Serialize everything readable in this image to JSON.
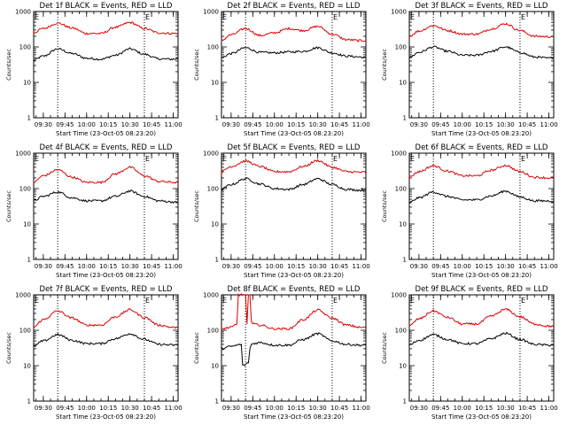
{
  "figure": {
    "background": "#ffffff",
    "events_color": "#000000",
    "lld_color": "#dd0000"
  },
  "chart_data": [
    {
      "type": "line",
      "title": "Det 1f BLACK = Events, RED = LLD",
      "xlabel": "Start Time (23-Oct-05 08:23:20)",
      "ylabel": "Counts/sec",
      "ylog": true,
      "ylim": [
        1,
        1000
      ],
      "ytick_labels": [
        "1",
        "10",
        "100",
        "1000"
      ],
      "x_tick_labels": [
        "09:30",
        "09:45",
        "10:00",
        "10:15",
        "10:30",
        "10:45",
        "11:00"
      ],
      "x_domain": [
        "09:23:20",
        "11:03:20"
      ],
      "markers": [
        {
          "label": "E",
          "time": "09:23:20"
        },
        {
          "label": "E",
          "time": "10:40:00"
        }
      ],
      "vlines": [
        "09:40:00",
        "10:40:00"
      ],
      "series": [
        {
          "name": "Events",
          "x": [
            "09:23",
            "09:30",
            "09:40",
            "09:50",
            "10:00",
            "10:10",
            "10:20",
            "10:30",
            "10:40",
            "10:50",
            "11:00",
            "11:03"
          ],
          "values": [
            42,
            55,
            88,
            65,
            48,
            45,
            58,
            88,
            62,
            46,
            45,
            46
          ]
        },
        {
          "name": "LLD",
          "x": [
            "09:23",
            "09:30",
            "09:40",
            "09:50",
            "10:00",
            "10:10",
            "10:20",
            "10:30",
            "10:40",
            "10:50",
            "11:00",
            "11:03"
          ],
          "values": [
            250,
            330,
            470,
            340,
            240,
            240,
            360,
            490,
            330,
            250,
            240,
            245
          ]
        }
      ]
    },
    {
      "type": "line",
      "title": "Det 2f BLACK = Events, RED = LLD",
      "xlabel": "Start Time (23-Oct-05 08:23:20)",
      "ylabel": "Counts/sec",
      "ylog": true,
      "ylim": [
        1,
        1000
      ],
      "ytick_labels": [
        "1",
        "10",
        "100",
        "1000"
      ],
      "x_tick_labels": [
        "09:30",
        "09:45",
        "10:00",
        "10:15",
        "10:30",
        "10:45",
        "11:00"
      ],
      "x_domain": [
        "09:23:20",
        "11:03:20"
      ],
      "markers": [
        {
          "label": "E",
          "time": "09:23:20"
        },
        {
          "label": "E",
          "time": "10:40:00"
        }
      ],
      "vlines": [
        "09:40:00",
        "10:40:00"
      ],
      "series": [
        {
          "name": "Events",
          "x": [
            "09:23",
            "09:30",
            "09:40",
            "09:50",
            "10:00",
            "10:10",
            "10:20",
            "10:30",
            "10:40",
            "10:50",
            "11:00",
            "11:03"
          ],
          "values": [
            50,
            65,
            95,
            70,
            68,
            72,
            75,
            95,
            68,
            55,
            52,
            50
          ]
        },
        {
          "name": "LLD",
          "x": [
            "09:23",
            "09:30",
            "09:40",
            "09:50",
            "10:00",
            "10:10",
            "10:20",
            "10:30",
            "10:40",
            "10:50",
            "11:00",
            "11:03"
          ],
          "values": [
            150,
            220,
            330,
            210,
            250,
            330,
            290,
            380,
            230,
            160,
            150,
            150
          ]
        }
      ]
    },
    {
      "type": "line",
      "title": "Det 3f BLACK = Events, RED = LLD",
      "xlabel": "Start Time (23-Oct-05 08:23:20)",
      "ylabel": "Counts/sec",
      "ylog": true,
      "ylim": [
        1,
        1000
      ],
      "ytick_labels": [
        "1",
        "10",
        "100",
        "1000"
      ],
      "x_tick_labels": [
        "09:30",
        "09:45",
        "10:00",
        "10:15",
        "10:30",
        "10:45",
        "11:00"
      ],
      "x_domain": [
        "09:23:20",
        "11:03:20"
      ],
      "markers": [
        {
          "label": "E",
          "time": "09:23:20"
        },
        {
          "label": "E",
          "time": "10:40:00"
        }
      ],
      "vlines": [
        "09:40:00",
        "10:40:00"
      ],
      "series": [
        {
          "name": "Events",
          "x": [
            "09:23",
            "09:30",
            "09:40",
            "09:50",
            "10:00",
            "10:10",
            "10:20",
            "10:30",
            "10:40",
            "10:50",
            "11:00",
            "11:03"
          ],
          "values": [
            50,
            70,
            100,
            75,
            58,
            58,
            75,
            100,
            70,
            52,
            48,
            50
          ]
        },
        {
          "name": "LLD",
          "x": [
            "09:23",
            "09:30",
            "09:40",
            "09:50",
            "10:00",
            "10:10",
            "10:20",
            "10:30",
            "10:40",
            "10:50",
            "11:00",
            "11:03"
          ],
          "values": [
            200,
            280,
            400,
            290,
            230,
            230,
            320,
            450,
            290,
            200,
            195,
            200
          ]
        }
      ]
    },
    {
      "type": "line",
      "title": "Det 4f BLACK = Events, RED = LLD",
      "xlabel": "Start Time (23-Oct-05 08:23:20)",
      "ylabel": "Counts/sec",
      "ylog": true,
      "ylim": [
        1,
        1000
      ],
      "ytick_labels": [
        "1",
        "10",
        "100",
        "1000"
      ],
      "x_tick_labels": [
        "09:30",
        "09:45",
        "10:00",
        "10:15",
        "10:30",
        "10:45",
        "11:00"
      ],
      "x_domain": [
        "09:23:20",
        "11:03:20"
      ],
      "markers": [
        {
          "label": "E",
          "time": "09:23:20"
        },
        {
          "label": "E",
          "time": "10:40:00"
        }
      ],
      "vlines": [
        "09:40:00",
        "10:40:00"
      ],
      "series": [
        {
          "name": "Events",
          "x": [
            "09:23",
            "09:30",
            "09:40",
            "09:50",
            "10:00",
            "10:10",
            "10:20",
            "10:30",
            "10:40",
            "10:50",
            "11:00",
            "11:03"
          ],
          "values": [
            45,
            60,
            80,
            55,
            45,
            45,
            60,
            85,
            60,
            45,
            42,
            40
          ]
        },
        {
          "name": "LLD",
          "x": [
            "09:23",
            "09:30",
            "09:40",
            "09:50",
            "10:00",
            "10:10",
            "10:20",
            "10:30",
            "10:40",
            "10:50",
            "11:00",
            "11:03"
          ],
          "values": [
            150,
            230,
            340,
            210,
            150,
            150,
            260,
            400,
            230,
            160,
            150,
            150
          ]
        }
      ]
    },
    {
      "type": "line",
      "title": "Det 5f BLACK = Events, RED = LLD",
      "xlabel": "Start Time (23-Oct-05 08:23:20)",
      "ylabel": "Counts/sec",
      "ylog": true,
      "ylim": [
        1,
        1000
      ],
      "ytick_labels": [
        "1",
        "10",
        "100",
        "1000"
      ],
      "x_tick_labels": [
        "09:30",
        "09:45",
        "10:00",
        "10:15",
        "10:30",
        "10:45",
        "11:00"
      ],
      "x_domain": [
        "09:23:20",
        "11:03:20"
      ],
      "markers": [
        {
          "label": "E",
          "time": "09:23:20"
        },
        {
          "label": "E",
          "time": "10:40:00"
        }
      ],
      "vlines": [
        "09:40:00",
        "10:40:00"
      ],
      "series": [
        {
          "name": "Events",
          "x": [
            "09:23",
            "09:30",
            "09:40",
            "09:50",
            "10:00",
            "10:10",
            "10:20",
            "10:30",
            "10:40",
            "10:50",
            "11:00",
            "11:03"
          ],
          "values": [
            95,
            130,
            190,
            135,
            100,
            95,
            130,
            190,
            130,
            95,
            90,
            92
          ]
        },
        {
          "name": "LLD",
          "x": [
            "09:23",
            "09:30",
            "09:40",
            "09:50",
            "10:00",
            "10:10",
            "10:20",
            "10:30",
            "10:40",
            "10:50",
            "11:00",
            "11:03"
          ],
          "values": [
            300,
            420,
            600,
            420,
            300,
            300,
            420,
            620,
            400,
            300,
            290,
            290
          ]
        }
      ]
    },
    {
      "type": "line",
      "title": "Det 6f BLACK = Events, RED = LLD",
      "xlabel": "Start Time (23-Oct-05 08:23:20)",
      "ylabel": "Counts/sec",
      "ylog": true,
      "ylim": [
        1,
        1000
      ],
      "ytick_labels": [
        "1",
        "10",
        "100",
        "1000"
      ],
      "x_tick_labels": [
        "09:30",
        "09:45",
        "10:00",
        "10:15",
        "10:30",
        "10:45",
        "11:00"
      ],
      "x_domain": [
        "09:23:20",
        "11:03:20"
      ],
      "markers": [
        {
          "label": "E",
          "time": "09:23:20"
        },
        {
          "label": "E",
          "time": "10:40:00"
        }
      ],
      "vlines": [
        "09:40:00",
        "10:40:00"
      ],
      "series": [
        {
          "name": "Events",
          "x": [
            "09:23",
            "09:30",
            "09:40",
            "09:50",
            "10:00",
            "10:10",
            "10:20",
            "10:30",
            "10:40",
            "10:50",
            "11:00",
            "11:03"
          ],
          "values": [
            40,
            55,
            80,
            60,
            48,
            48,
            62,
            85,
            58,
            45,
            45,
            44
          ]
        },
        {
          "name": "LLD",
          "x": [
            "09:23",
            "09:30",
            "09:40",
            "09:50",
            "10:00",
            "10:10",
            "10:20",
            "10:30",
            "10:40",
            "10:50",
            "11:00",
            "11:03"
          ],
          "values": [
            210,
            300,
            440,
            310,
            230,
            230,
            330,
            450,
            300,
            210,
            200,
            205
          ]
        }
      ]
    },
    {
      "type": "line",
      "title": "Det 7f BLACK = Events, RED = LLD",
      "xlabel": "Start Time (23-Oct-05 08:23:20)",
      "ylabel": "Counts/sec",
      "ylog": true,
      "ylim": [
        1,
        1000
      ],
      "ytick_labels": [
        "1",
        "10",
        "100",
        "1000"
      ],
      "x_tick_labels": [
        "09:30",
        "09:45",
        "10:00",
        "10:15",
        "10:30",
        "10:45",
        "11:00"
      ],
      "x_domain": [
        "09:23:20",
        "11:03:20"
      ],
      "markers": [
        {
          "label": "E",
          "time": "09:23:20"
        },
        {
          "label": "E",
          "time": "10:40:00"
        }
      ],
      "vlines": [
        "09:40:00",
        "10:40:00"
      ],
      "series": [
        {
          "name": "Events",
          "x": [
            "09:23",
            "09:30",
            "09:40",
            "09:50",
            "10:00",
            "10:10",
            "10:20",
            "10:30",
            "10:40",
            "10:50",
            "11:00",
            "11:03"
          ],
          "values": [
            35,
            50,
            75,
            52,
            42,
            42,
            58,
            80,
            55,
            40,
            38,
            38
          ]
        },
        {
          "name": "LLD",
          "x": [
            "09:23",
            "09:30",
            "09:40",
            "09:50",
            "10:00",
            "10:10",
            "10:20",
            "10:30",
            "10:40",
            "10:50",
            "11:00",
            "11:03"
          ],
          "values": [
            120,
            200,
            350,
            220,
            140,
            140,
            240,
            380,
            230,
            140,
            120,
            120
          ]
        }
      ]
    },
    {
      "type": "line",
      "title": "Det 8f BLACK = Events, RED = LLD",
      "xlabel": "Start Time (23-Oct-05 08:23:20)",
      "ylabel": "Counts/sec",
      "ylog": true,
      "ylim": [
        1,
        1000
      ],
      "ytick_labels": [
        "1",
        "10",
        "100",
        "1000"
      ],
      "x_tick_labels": [
        "09:30",
        "09:45",
        "10:00",
        "10:15",
        "10:30",
        "10:45",
        "11:00"
      ],
      "x_domain": [
        "09:23:20",
        "11:03:20"
      ],
      "markers": [
        {
          "label": "E",
          "time": "09:23:20"
        },
        {
          "label": "E",
          "time": "10:40:00"
        }
      ],
      "vlines": [
        "09:40:00",
        "10:40:00"
      ],
      "series": [
        {
          "name": "Events",
          "x": [
            "09:23",
            "09:30",
            "09:37",
            "09:38",
            "09:42",
            "09:43",
            "09:44",
            "09:45",
            "09:50",
            "10:00",
            "10:10",
            "10:20",
            "10:30",
            "10:40",
            "10:50",
            "11:00",
            "11:03"
          ],
          "values": [
            30,
            35,
            40,
            10,
            12,
            30,
            40,
            42,
            45,
            38,
            38,
            55,
            80,
            50,
            40,
            38,
            38
          ]
        },
        {
          "name": "LLD",
          "x": [
            "09:23",
            "09:30",
            "09:34",
            "09:35",
            "09:40",
            "09:41",
            "09:42",
            "09:43",
            "09:44",
            "09:45",
            "09:50",
            "10:00",
            "10:10",
            "10:20",
            "10:30",
            "10:40",
            "10:50",
            "11:00",
            "11:03"
          ],
          "values": [
            110,
            120,
            150,
            1000,
            1000,
            150,
            1000,
            1000,
            180,
            150,
            140,
            110,
            110,
            200,
            370,
            220,
            140,
            120,
            120
          ]
        }
      ]
    },
    {
      "type": "line",
      "title": "Det 9f BLACK = Events, RED = LLD",
      "xlabel": "Start Time (23-Oct-05 08:23:20)",
      "ylabel": "Counts/sec",
      "ylog": true,
      "ylim": [
        1,
        1000
      ],
      "ytick_labels": [
        "1",
        "10",
        "100",
        "1000"
      ],
      "x_tick_labels": [
        "09:30",
        "09:45",
        "10:00",
        "10:15",
        "10:30",
        "10:45",
        "11:00"
      ],
      "x_domain": [
        "09:23:20",
        "11:03:20"
      ],
      "markers": [
        {
          "label": "E",
          "time": "09:23:20"
        },
        {
          "label": "E",
          "time": "10:40:00"
        }
      ],
      "vlines": [
        "09:40:00",
        "10:40:00"
      ],
      "series": [
        {
          "name": "Events",
          "x": [
            "09:23",
            "09:30",
            "09:40",
            "09:50",
            "10:00",
            "10:10",
            "10:20",
            "10:30",
            "10:40",
            "10:50",
            "11:00",
            "11:03"
          ],
          "values": [
            38,
            52,
            75,
            55,
            42,
            42,
            58,
            82,
            55,
            40,
            38,
            38
          ]
        },
        {
          "name": "LLD",
          "x": [
            "09:23",
            "09:30",
            "09:40",
            "09:50",
            "10:00",
            "10:10",
            "10:20",
            "10:30",
            "10:40",
            "10:50",
            "11:00",
            "11:03"
          ],
          "values": [
            130,
            210,
            350,
            230,
            150,
            150,
            250,
            390,
            240,
            150,
            130,
            130
          ]
        }
      ]
    }
  ]
}
